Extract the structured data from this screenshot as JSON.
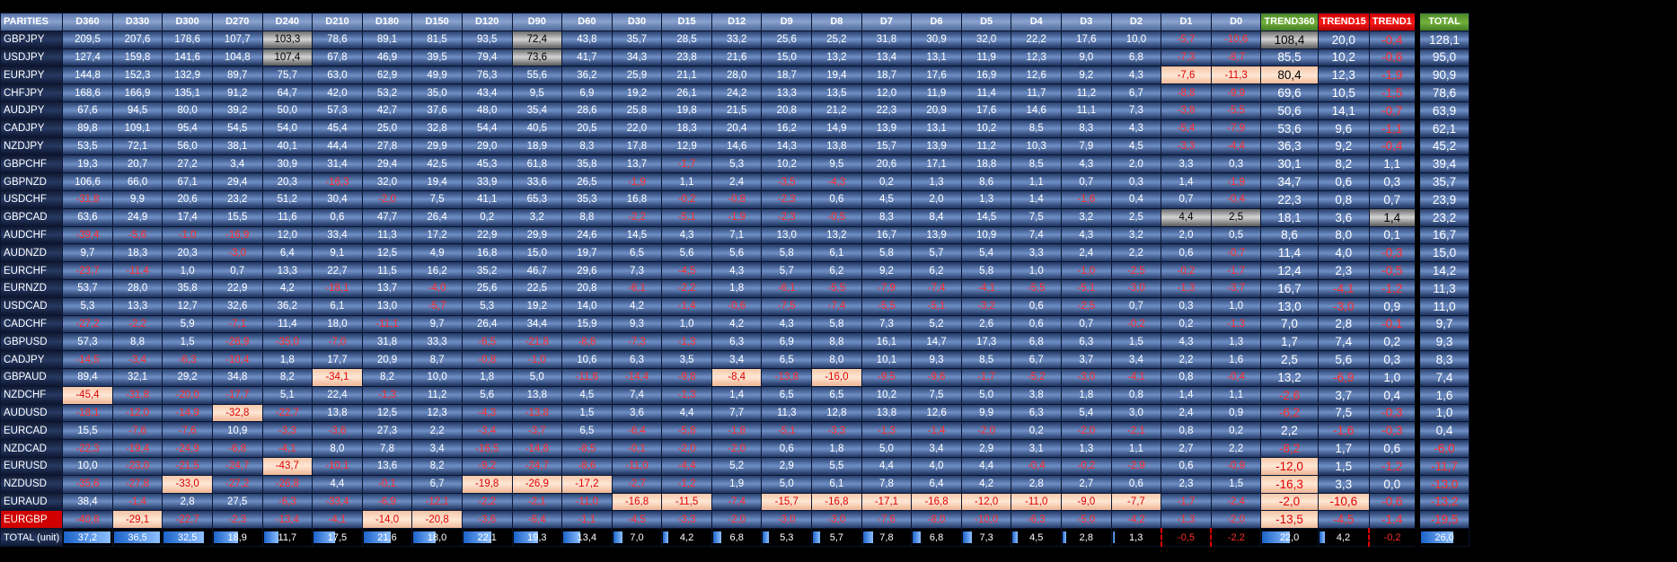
{
  "headers": [
    "PARITIES",
    "D360",
    "D330",
    "D300",
    "D270",
    "D240",
    "D210",
    "D180",
    "D150",
    "D120",
    "D90",
    "D60",
    "D30",
    "D15",
    "D12",
    "D9",
    "D8",
    "D7",
    "D6",
    "D5",
    "D4",
    "D3",
    "D2",
    "D1",
    "D0",
    "TREND360",
    "TREND15",
    "TREND1",
    "TOTAL"
  ],
  "rows": [
    {
      "pair": "GBPJPY",
      "values": [
        "209,5",
        "207,6",
        "178,6",
        "107,7",
        "103,3",
        "78,6",
        "89,1",
        "81,5",
        "93,5",
        "72,4",
        "43,8",
        "35,7",
        "28,5",
        "33,2",
        "25,6",
        "25,2",
        "31,8",
        "30,9",
        "32,0",
        "22,2",
        "17,6",
        "10,0",
        "-5,7",
        "-10,6"
      ],
      "trend360": "108,4",
      "trend15": "20,0",
      "trend1": "-0,4",
      "total": "128,1"
    },
    {
      "pair": "USDJPY",
      "values": [
        "127,4",
        "159,8",
        "141,6",
        "104,8",
        "107,4",
        "67,8",
        "46,9",
        "39,5",
        "79,4",
        "73,6",
        "41,7",
        "34,3",
        "23,8",
        "21,6",
        "15,0",
        "13,2",
        "13,4",
        "13,1",
        "11,9",
        "12,3",
        "9,0",
        "6,8",
        "-7,3",
        "-8,7"
      ],
      "trend360": "85,5",
      "trend15": "10,2",
      "trend1": "-0,6",
      "total": "95,0"
    },
    {
      "pair": "EURJPY",
      "values": [
        "144,8",
        "152,3",
        "132,9",
        "89,7",
        "75,7",
        "63,0",
        "62,9",
        "49,9",
        "76,3",
        "55,6",
        "36,2",
        "25,9",
        "21,1",
        "28,0",
        "18,7",
        "19,4",
        "18,7",
        "17,6",
        "16,9",
        "12,6",
        "9,2",
        "4,3",
        "-7,6",
        "-11,3"
      ],
      "trend360": "80,4",
      "trend15": "12,3",
      "trend1": "-1,9",
      "total": "90,9"
    },
    {
      "pair": "CHFJPY",
      "values": [
        "168,6",
        "166,9",
        "135,1",
        "91,2",
        "64,7",
        "42,0",
        "53,2",
        "35,0",
        "43,4",
        "9,5",
        "6,9",
        "19,2",
        "26,1",
        "24,2",
        "13,3",
        "13,5",
        "12,0",
        "11,9",
        "11,4",
        "11,7",
        "11,2",
        "6,7",
        "-8,8",
        "-9,9"
      ],
      "trend360": "69,6",
      "trend15": "10,5",
      "trend1": "-1,5",
      "total": "78,6"
    },
    {
      "pair": "AUDJPY",
      "values": [
        "67,6",
        "94,5",
        "80,0",
        "39,2",
        "50,0",
        "57,3",
        "42,7",
        "37,6",
        "48,0",
        "35,4",
        "28,6",
        "25,8",
        "19,8",
        "21,5",
        "20,8",
        "21,2",
        "22,3",
        "20,9",
        "17,6",
        "14,6",
        "11,1",
        "7,3",
        "-3,8",
        "-5,5"
      ],
      "trend360": "50,6",
      "trend15": "14,1",
      "trend1": "-0,7",
      "total": "63,9"
    },
    {
      "pair": "CADJPY",
      "values": [
        "89,8",
        "109,1",
        "95,4",
        "54,5",
        "54,0",
        "45,4",
        "25,0",
        "32,8",
        "54,4",
        "40,5",
        "20,5",
        "22,0",
        "18,3",
        "20,4",
        "16,2",
        "14,9",
        "13,9",
        "13,1",
        "10,2",
        "8,5",
        "8,3",
        "4,3",
        "-5,4",
        "-7,9"
      ],
      "trend360": "53,6",
      "trend15": "9,6",
      "trend1": "-1,1",
      "total": "62,1"
    },
    {
      "pair": "NZDJPY",
      "values": [
        "53,5",
        "72,1",
        "56,0",
        "38,1",
        "40,1",
        "44,4",
        "27,8",
        "29,9",
        "29,0",
        "18,9",
        "8,3",
        "17,8",
        "12,9",
        "14,6",
        "14,3",
        "13,8",
        "15,7",
        "13,9",
        "11,2",
        "10,3",
        "7,9",
        "4,5",
        "-3,3",
        "-4,4"
      ],
      "trend360": "36,3",
      "trend15": "9,2",
      "trend1": "-0,4",
      "total": "45,2"
    },
    {
      "pair": "GBPCHF",
      "values": [
        "19,3",
        "20,7",
        "27,2",
        "3,4",
        "30,9",
        "31,4",
        "29,4",
        "42,5",
        "45,3",
        "61,8",
        "35,8",
        "13,7",
        "-1,7",
        "5,3",
        "10,2",
        "9,5",
        "20,6",
        "17,1",
        "18,8",
        "8,5",
        "4,3",
        "2,0",
        "3,3",
        "0,3"
      ],
      "trend360": "30,1",
      "trend15": "8,2",
      "trend1": "1,1",
      "total": "39,4"
    },
    {
      "pair": "GBPNZD",
      "values": [
        "106,6",
        "66,0",
        "67,1",
        "29,4",
        "20,3",
        "-16,3",
        "32,0",
        "19,4",
        "33,9",
        "33,6",
        "26,5",
        "-1,9",
        "1,1",
        "2,4",
        "-3,5",
        "-4,3",
        "0,2",
        "1,3",
        "8,6",
        "1,1",
        "0,7",
        "0,3",
        "1,4",
        "-1,9"
      ],
      "trend360": "34,7",
      "trend15": "0,6",
      "trend1": "0,3",
      "total": "35,7"
    },
    {
      "pair": "USDCHF",
      "values": [
        "-31,8",
        "9,9",
        "20,6",
        "23,2",
        "51,2",
        "30,4",
        "-2,0",
        "7,5",
        "41,1",
        "65,3",
        "35,3",
        "16,8",
        "-0,2",
        "-0,8",
        "-2,3",
        "0,6",
        "4,5",
        "2,0",
        "1,3",
        "1,4",
        "-1,6",
        "0,4",
        "0,7",
        "-0,4"
      ],
      "trend360": "22,3",
      "trend15": "0,8",
      "trend1": "0,7",
      "total": "23,9"
    },
    {
      "pair": "GBPCAD",
      "values": [
        "63,6",
        "24,9",
        "17,4",
        "15,5",
        "11,6",
        "0,6",
        "47,7",
        "26,4",
        "0,2",
        "3,2",
        "8,8",
        "-2,2",
        "-5,1",
        "-1,9",
        "-2,3",
        "-0,5",
        "8,3",
        "8,4",
        "14,5",
        "7,5",
        "3,2",
        "2,5",
        "4,4",
        "2,5"
      ],
      "trend360": "18,1",
      "trend15": "3,6",
      "trend1": "1,4",
      "total": "23,2"
    },
    {
      "pair": "AUDCHF",
      "values": [
        "-39,4",
        "-5,6",
        "-1,0",
        "-16,9",
        "12,0",
        "33,4",
        "11,3",
        "17,2",
        "22,9",
        "29,9",
        "24,6",
        "14,5",
        "4,3",
        "7,1",
        "13,0",
        "13,2",
        "16,7",
        "13,9",
        "10,9",
        "7,4",
        "4,3",
        "3,2",
        "2,0",
        "0,5"
      ],
      "trend360": "8,6",
      "trend15": "8,0",
      "trend1": "0,1",
      "total": "16,7"
    },
    {
      "pair": "AUDNZD",
      "values": [
        "9,7",
        "18,3",
        "20,3",
        "-3,0",
        "6,4",
        "9,1",
        "12,5",
        "4,9",
        "16,8",
        "15,0",
        "19,7",
        "6,5",
        "5,6",
        "5,6",
        "5,8",
        "6,1",
        "5,8",
        "5,7",
        "5,4",
        "3,3",
        "2,4",
        "2,2",
        "0,6",
        "-0,7"
      ],
      "trend360": "11,4",
      "trend15": "4,0",
      "trend1": "-0,3",
      "total": "15,0"
    },
    {
      "pair": "EURCHF",
      "values": [
        "-23,7",
        "-11,4",
        "1,0",
        "0,7",
        "13,3",
        "22,7",
        "11,5",
        "16,2",
        "35,2",
        "46,7",
        "29,6",
        "7,3",
        "-4,5",
        "4,3",
        "5,7",
        "6,2",
        "9,2",
        "6,2",
        "5,8",
        "1,0",
        "-1,0",
        "-2,5",
        "-0,2",
        "-1,7"
      ],
      "trend360": "12,4",
      "trend15": "2,3",
      "trend1": "-0,5",
      "total": "14,2"
    },
    {
      "pair": "EURNZD",
      "values": [
        "53,7",
        "28,0",
        "35,8",
        "22,9",
        "4,2",
        "-18,1",
        "13,7",
        "-4,0",
        "25,6",
        "22,5",
        "20,8",
        "-6,1",
        "-2,2",
        "1,8",
        "-6,1",
        "-5,5",
        "-7,9",
        "-7,4",
        "-4,1",
        "-5,5",
        "-5,1",
        "-3,0",
        "-1,3",
        "-3,7"
      ],
      "trend360": "16,7",
      "trend15": "-4,1",
      "trend1": "-1,2",
      "total": "11,3"
    },
    {
      "pair": "USDCAD",
      "values": [
        "5,3",
        "13,3",
        "12,7",
        "32,6",
        "36,2",
        "6,1",
        "13,0",
        "-5,7",
        "5,3",
        "19,2",
        "14,0",
        "4,2",
        "-1,4",
        "-0,6",
        "-7,5",
        "-7,4",
        "-5,5",
        "-5,1",
        "-3,2",
        "0,6",
        "-2,5",
        "0,7",
        "0,3",
        "1,0"
      ],
      "trend360": "13,0",
      "trend15": "-3,0",
      "trend1": "0,9",
      "total": "11,0"
    },
    {
      "pair": "CADCHF",
      "values": [
        "-27,2",
        "-2,2",
        "5,9",
        "-7,1",
        "11,4",
        "18,0",
        "-11,1",
        "9,7",
        "26,4",
        "34,4",
        "15,9",
        "9,3",
        "1,0",
        "4,2",
        "4,3",
        "5,8",
        "7,3",
        "5,2",
        "2,6",
        "0,6",
        "0,7",
        "-0,2",
        "0,2",
        "-1,3"
      ],
      "trend360": "7,0",
      "trend15": "2,8",
      "trend1": "-0,1",
      "total": "9,7"
    },
    {
      "pair": "GBPUSD",
      "values": [
        "57,3",
        "8,8",
        "1,5",
        "-26,9",
        "-35,0",
        "-7,0",
        "31,8",
        "33,3",
        "-6,5",
        "-21,8",
        "-8,8",
        "-7,3",
        "-1,3",
        "6,3",
        "6,9",
        "8,8",
        "16,1",
        "14,7",
        "17,3",
        "6,8",
        "6,3",
        "1,5",
        "4,3",
        "1,3"
      ],
      "trend360": "1,7",
      "trend15": "7,4",
      "trend1": "0,2",
      "total": "9,3"
    },
    {
      "pair": "CADJPY",
      "values": [
        "-14,5",
        "-3,4",
        "-6,3",
        "-10,4",
        "1,8",
        "17,7",
        "20,9",
        "8,7",
        "-0,8",
        "-1,0",
        "10,6",
        "6,3",
        "3,5",
        "3,4",
        "6,5",
        "8,0",
        "10,1",
        "9,3",
        "8,5",
        "6,7",
        "3,7",
        "3,4",
        "2,2",
        "1,6"
      ],
      "trend360": "2,5",
      "trend15": "5,6",
      "trend1": "0,3",
      "total": "8,3"
    },
    {
      "pair": "GBPAUD",
      "values": [
        "89,4",
        "32,1",
        "29,2",
        "34,8",
        "8,2",
        "-34,1",
        "8,2",
        "10,0",
        "1,8",
        "5,0",
        "-11,6",
        "-14,4",
        "-9,8",
        "-8,4",
        "-13,8",
        "-16,0",
        "-9,5",
        "-9,6",
        "-1,7",
        "-5,2",
        "-3,0",
        "-4,1",
        "0,8",
        "-0,4"
      ],
      "trend360": "13,2",
      "trend15": "-6,9",
      "trend1": "1,0",
      "total": "7,4"
    },
    {
      "pair": "NZDCHF",
      "values": [
        "-45,4",
        "-31,8",
        "-20,0",
        "-17,7",
        "5,1",
        "22,4",
        "-1,3",
        "11,2",
        "5,6",
        "13,8",
        "4,5",
        "7,4",
        "-1,3",
        "1,4",
        "6,5",
        "6,5",
        "10,2",
        "7,5",
        "5,0",
        "3,8",
        "1,8",
        "0,8",
        "1,4",
        "1,1"
      ],
      "trend360": "-2,6",
      "trend15": "3,7",
      "trend1": "0,4",
      "total": "1,6"
    },
    {
      "pair": "AUDUSD",
      "values": [
        "-18,1",
        "-12,0",
        "-14,9",
        "-32,8",
        "-22,7",
        "13,8",
        "12,5",
        "12,3",
        "-4,3",
        "-13,8",
        "1,5",
        "3,6",
        "4,4",
        "7,7",
        "11,3",
        "12,8",
        "13,8",
        "12,6",
        "9,9",
        "6,3",
        "5,4",
        "3,0",
        "2,4",
        "0,9"
      ],
      "trend360": "-6,2",
      "trend15": "7,5",
      "trend1": "-0,3",
      "total": "1,0"
    },
    {
      "pair": "EURCAD",
      "values": [
        "15,5",
        "-7,6",
        "-7,6",
        "10,9",
        "-3,3",
        "-3,6",
        "27,3",
        "2,2",
        "-3,4",
        "-3,7",
        "6,5",
        "-6,4",
        "-5,8",
        "-1,8",
        "-5,1",
        "-3,3",
        "-1,3",
        "-1,4",
        "-2,0",
        "0,2",
        "-2,0",
        "-2,1",
        "0,8",
        "0,2"
      ],
      "trend360": "2,2",
      "trend15": "-1,6",
      "trend1": "-0,3",
      "total": "0,4"
    },
    {
      "pair": "NZDCAD",
      "values": [
        "-22,3",
        "-19,4",
        "-24,9",
        "-6,8",
        "-4,1",
        "8,0",
        "7,8",
        "3,4",
        "-16,5",
        "-14,8",
        "-8,5",
        "-0,1",
        "-2,0",
        "-2,0",
        "0,6",
        "1,8",
        "5,0",
        "3,4",
        "2,9",
        "3,1",
        "1,3",
        "1,1",
        "2,7",
        "2,2"
      ],
      "trend360": "-8,2",
      "trend15": "1,7",
      "trend1": "0,6",
      "total": "-6,0"
    },
    {
      "pair": "EURUSD",
      "values": [
        "10,0",
        "-23,0",
        "-21,5",
        "-24,7",
        "-43,7",
        "-10,1",
        "13,6",
        "8,2",
        "-9,2",
        "-24,7",
        "-8,6",
        "-11,0",
        "-4,4",
        "5,2",
        "2,9",
        "5,5",
        "4,4",
        "4,0",
        "4,4",
        "-0,4",
        "-0,2",
        "-2,9",
        "0,6",
        "-0,9"
      ],
      "trend360": "-12,0",
      "trend15": "1,5",
      "trend1": "-1,2",
      "total": "-11,7"
    },
    {
      "pair": "NZDUSD",
      "values": [
        "-35,6",
        "-27,8",
        "-33,0",
        "-27,2",
        "-26,8",
        "4,4",
        "-0,1",
        "6,7",
        "-19,8",
        "-26,9",
        "-17,2",
        "-2,7",
        "-1,2",
        "1,9",
        "5,0",
        "6,1",
        "7,8",
        "6,4",
        "4,2",
        "2,8",
        "2,7",
        "0,6",
        "2,3",
        "1,5"
      ],
      "trend360": "-16,3",
      "trend15": "3,3",
      "trend1": "0,0",
      "total": "-13,0"
    },
    {
      "pair": "EURAUD",
      "values": [
        "38,4",
        "-1,4",
        "2,8",
        "27,5",
        "-6,3",
        "-33,4",
        "-6,9",
        "-12,1",
        "-2,2",
        "-2,1",
        "-11,0",
        "-16,8",
        "-11,5",
        "-7,4",
        "-15,7",
        "-16,8",
        "-17,1",
        "-16,8",
        "-12,0",
        "-11,0",
        "-9,0",
        "-7,7",
        "-1,7",
        "-2,4"
      ],
      "trend360": "-2,0",
      "trend15": "-10,6",
      "trend1": "-0,6",
      "total": "-13,2"
    },
    {
      "pair": "EURGBP",
      "values": [
        "-40,8",
        "-29,1",
        "-22,7",
        "-2,3",
        "-13,4",
        "-4,1",
        "-14,0",
        "-20,8",
        "-3,6",
        "-6,4",
        "-1,1",
        "-4,5",
        "-3,3",
        "-2,0",
        "-3,0",
        "-3,0",
        "-7,6",
        "-8,0",
        "-10,0",
        "-6,3",
        "-5,0",
        "-4,2",
        "-1,3",
        "-2,0"
      ],
      "trend360": "-13,5",
      "trend15": "-4,5",
      "trend1": "-1,4",
      "total": "-19,5"
    }
  ],
  "total_row": {
    "label": "TOTAL (unit)",
    "values": [
      "37,2",
      "36,5",
      "32,5",
      "18,9",
      "11,7",
      "17,5",
      "21,6",
      "18,0",
      "22,1",
      "19,3",
      "13,4",
      "7,0",
      "4,2",
      "6,8",
      "5,3",
      "5,7",
      "7,8",
      "6,8",
      "7,3",
      "4,5",
      "2,8",
      "1,3",
      "-0,5",
      "-2,2"
    ],
    "bar_fractions": [
      1.0,
      0.98,
      0.87,
      0.51,
      0.31,
      0.47,
      0.58,
      0.48,
      0.59,
      0.52,
      0.36,
      0.19,
      0.11,
      0.18,
      0.14,
      0.15,
      0.21,
      0.18,
      0.2,
      0.12,
      0.08,
      0.03,
      0,
      0
    ],
    "trend360": "22,0",
    "trend15": "4,2",
    "trend1": "-0,2",
    "total": "26,0",
    "trend_bar_fractions": [
      0.59,
      0.11,
      0,
      0.7
    ]
  },
  "highlights": {
    "GBPJPY": {
      "gr": [
        4,
        9
      ],
      "dk": []
    },
    "USDJPY": {
      "gr": [
        4,
        9
      ]
    },
    "EURJPY": {
      "hl": [
        22,
        23
      ]
    },
    "GBPCAD": {
      "gr": [
        22,
        23
      ],
      "grt": [
        "trend1"
      ]
    },
    "EURGBP": {
      "hl": [
        1,
        6,
        7
      ]
    },
    "GBPAUD": {
      "hl": [
        5,
        13,
        15
      ]
    },
    "NZDCHF": {
      "hl": [
        0
      ]
    },
    "AUDUSD": {
      "hl": [
        3
      ]
    },
    "EURUSD": {
      "hl": [
        4
      ]
    },
    "NZDUSD": {
      "hl": [
        2,
        8,
        9,
        10
      ]
    },
    "EURAUD": {
      "hl": [
        11,
        12,
        14,
        15,
        16,
        17,
        18,
        19,
        20,
        21
      ]
    }
  },
  "trend_highlights": {
    "GBPJPY": {
      "trend360": "gr"
    },
    "EURJPY": {
      "trend360": "hl"
    },
    "EURUSD": {
      "trend360": "hl"
    },
    "NZDUSD": {
      "trend360": "hl"
    },
    "EURAUD": {
      "trend360": "hl",
      "trend15": "hl"
    },
    "EURGBP": {
      "trend360": "hl"
    },
    "GBPCAD": {
      "trend1": "gr"
    }
  },
  "red_label_pair": "EURGBP"
}
